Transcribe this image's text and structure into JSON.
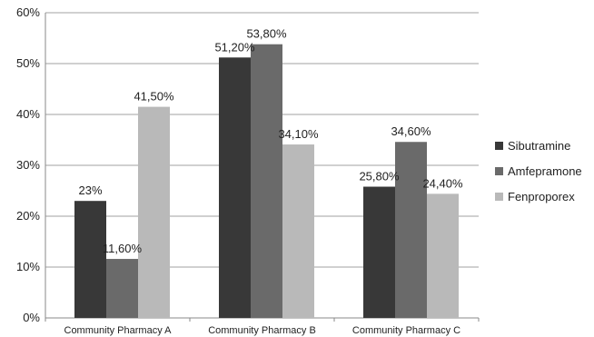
{
  "chart_data": {
    "type": "bar",
    "categories": [
      "Community Pharmacy A",
      "Community Pharmacy B",
      "Community Pharmacy C"
    ],
    "series": [
      {
        "name": "Sibutramine",
        "color": "#383838",
        "values": [
          23,
          51.2,
          25.8
        ],
        "labels": [
          "23%",
          "51,20%",
          "25,80%"
        ]
      },
      {
        "name": "Amfepramone",
        "color": "#6a6a6a",
        "values": [
          11.6,
          53.8,
          34.6
        ],
        "labels": [
          "11,60%",
          "53,80%",
          "34,60%"
        ]
      },
      {
        "name": "Fenproporex",
        "color": "#b9b9b9",
        "values": [
          41.5,
          34.1,
          24.4
        ],
        "labels": [
          "41,50%",
          "34,10%",
          "24,40%"
        ]
      }
    ],
    "yticks": [
      "0%",
      "10%",
      "20%",
      "30%",
      "40%",
      "50%",
      "60%"
    ],
    "ylim": [
      0,
      60
    ],
    "grid": true,
    "legend": "right",
    "title": "",
    "xlabel": "",
    "ylabel": ""
  }
}
